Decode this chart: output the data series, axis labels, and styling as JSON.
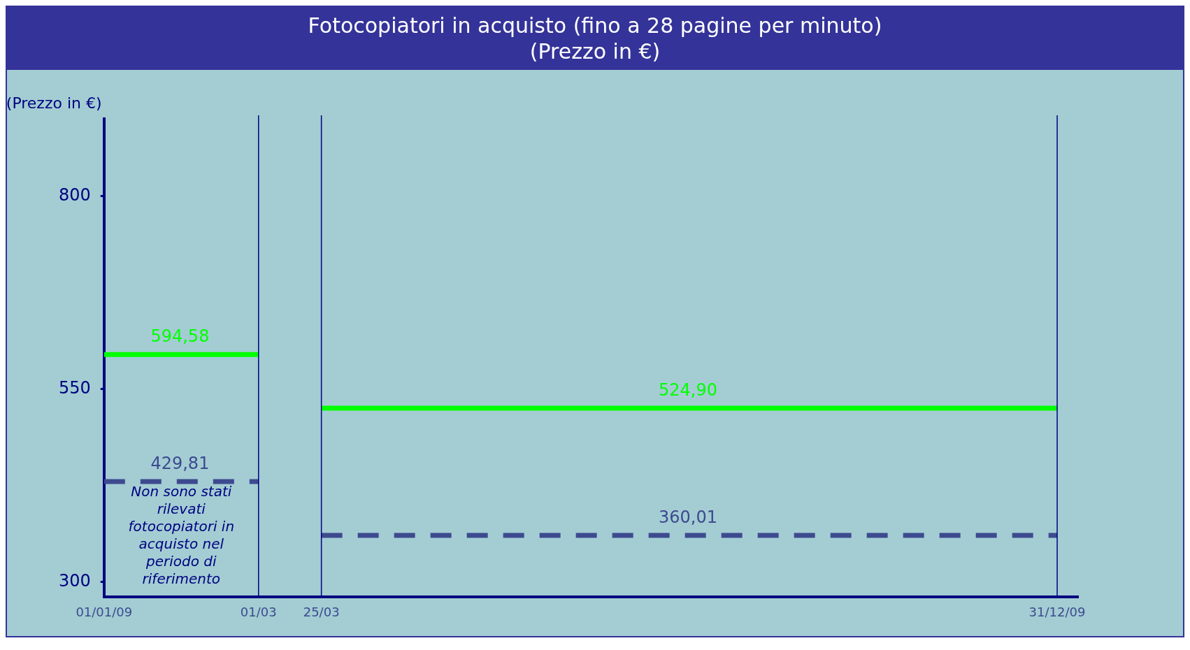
{
  "chart_data": {
    "type": "line",
    "title": "Fotocopiatori in acquisto (fino a 28 pagine per minuto)",
    "subtitle": "(Prezzo in €)",
    "ylabel": "(Prezzo in €)",
    "series": [
      {
        "color": "#00ff00",
        "x": [
          "2009-01-01",
          "2009-01-30",
          "2009-03-01"
        ],
        "values": [
          594.58,
          594.58,
          594.58
        ],
        "value_labels": [
          null,
          "594,58",
          null
        ]
      },
      {
        "color": "#00ff00",
        "x": [
          "2009-03-25",
          "2009-08-12",
          "2009-12-31"
        ],
        "values": [
          524.9,
          524.9,
          524.9
        ],
        "value_labels": [
          null,
          "524,90",
          null
        ]
      },
      {
        "color": "#3d4a8f",
        "line_style": "dashed",
        "x": [
          "2009-01-01",
          "2009-01-30",
          "2009-03-01"
        ],
        "values": [
          429.81,
          429.81,
          429.81
        ],
        "value_labels": [
          null,
          "429,81",
          null
        ]
      },
      {
        "color": "#3d4a8f",
        "line_style": "dashed",
        "x": [
          "2009-03-25",
          "2009-08-12",
          "2009-12-31"
        ],
        "values": [
          360.01,
          360.01,
          360.01
        ],
        "value_labels": [
          null,
          "360,01",
          null
        ]
      }
    ],
    "xlim": [
      "2009-01-01",
      "2010-01-08"
    ],
    "xticks": [
      {
        "value": "2009-01-01",
        "label": "01/01/09"
      },
      {
        "value": "2009-03-01",
        "label": "01/03"
      },
      {
        "value": "2009-03-25",
        "label": "25/03"
      },
      {
        "value": "2009-12-31",
        "label": "31/12/09"
      }
    ],
    "ylim": [
      280,
      900
    ],
    "yticks": [
      300,
      550,
      800
    ],
    "ref_lines": [
      {
        "axis": "x",
        "value": "2009-03-01",
        "color": "#000080"
      },
      {
        "axis": "x",
        "value": "2009-03-25",
        "color": "#000080"
      },
      {
        "axis": "x",
        "value": "2009-12-31",
        "color": "#000080"
      }
    ],
    "annotations": [
      "Non sono stati rilevati fotocopiatori in acquisto nel periodo di riferimento"
    ],
    "marker": "none",
    "legend": false
  }
}
